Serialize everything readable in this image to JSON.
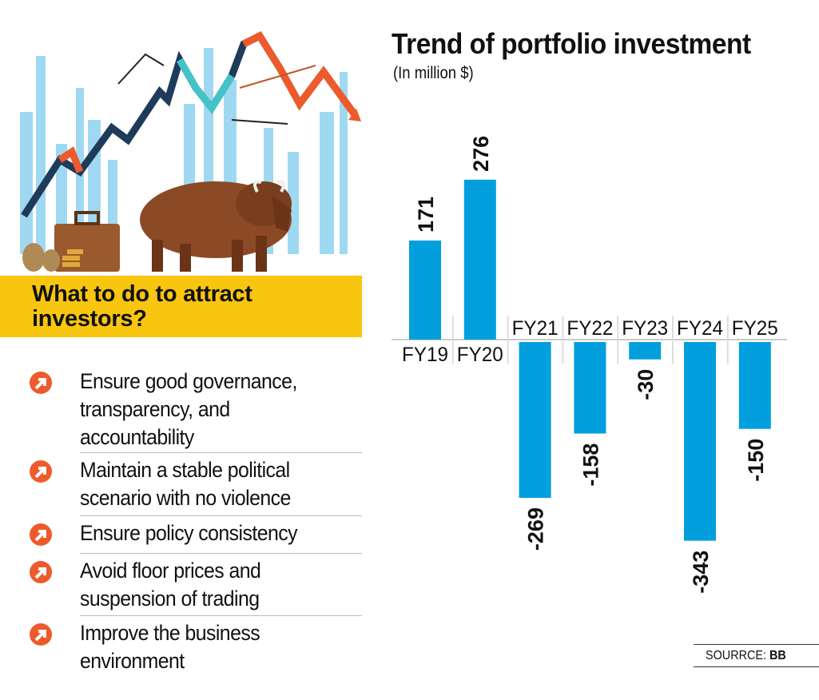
{
  "infographic": {
    "heading": "What to do to attract investors?",
    "bullets": [
      "Ensure good governance, transparency, and accountability",
      "Maintain a stable political scenario with no violence",
      "Ensure policy consistency",
      "Avoid floor prices and suspension of trading",
      "Improve the business environment"
    ],
    "bullet_lines": [
      [
        "Ensure good governance,",
        "transparency, and",
        "accountability"
      ],
      [
        "Maintain a stable political",
        "scenario with no violence"
      ],
      [
        "Ensure policy consistency"
      ],
      [
        "Avoid floor prices and",
        "suspension of trading"
      ],
      [
        "Improve the business",
        "environment"
      ]
    ],
    "source_label": "SOURRCE:",
    "source_value": "BB",
    "colors": {
      "bar": "#019fdd",
      "banner": "#f8c50f",
      "bullet_icon": "#ee5a2b"
    }
  },
  "chart_data": {
    "type": "bar",
    "title": "Trend of portfolio investment",
    "subtitle": "(In million $)",
    "xlabel": "",
    "ylabel": "",
    "categories": [
      "FY19",
      "FY20",
      "FY21",
      "FY22",
      "FY23",
      "FY24",
      "FY25"
    ],
    "values": [
      171,
      276,
      -269,
      -158,
      -30,
      -343,
      -150
    ],
    "ylim": [
      -343,
      276
    ],
    "grid": false,
    "legend": "none"
  }
}
